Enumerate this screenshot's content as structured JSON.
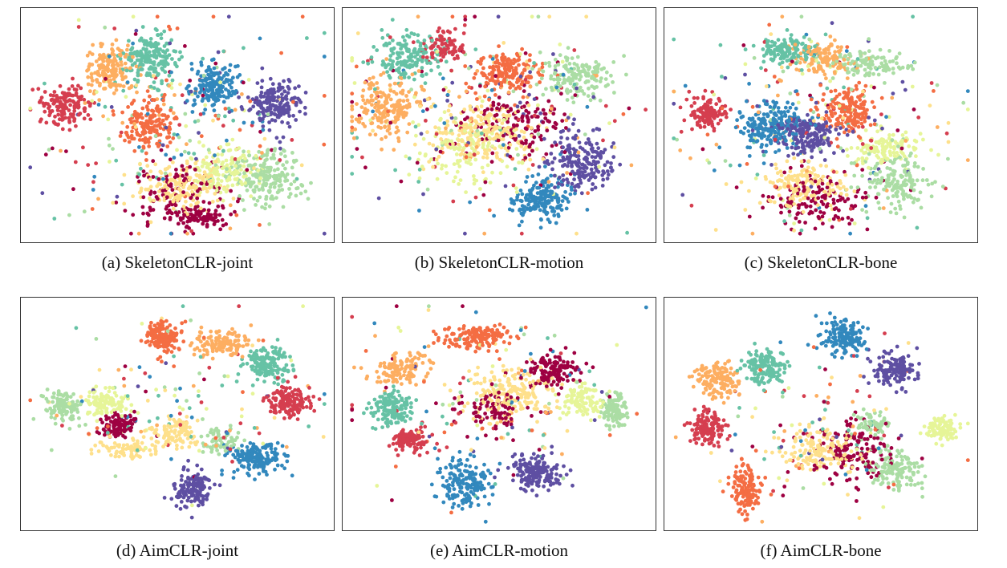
{
  "figure": {
    "panels": [
      {
        "label": "(a)",
        "title": "SkeletonCLR-joint"
      },
      {
        "label": "(b)",
        "title": "SkeletonCLR-motion"
      },
      {
        "label": "(c)",
        "title": "SkeletonCLR-bone"
      },
      {
        "label": "(d)",
        "title": "AimCLR-joint"
      },
      {
        "label": "(e)",
        "title": "AimCLR-motion"
      },
      {
        "label": "(f)",
        "title": "AimCLR-bone"
      }
    ]
  },
  "chart_data": [
    {
      "type": "scatter",
      "title": "SkeletonCLR-joint",
      "xlim": [
        0,
        100
      ],
      "ylim": [
        0,
        100
      ],
      "grid": false,
      "legend": "none",
      "palette": [
        "#9e0142",
        "#d53e4f",
        "#f46d43",
        "#fdae61",
        "#fee08b",
        "#e6f598",
        "#abdda4",
        "#66c2a5",
        "#3288bd",
        "#5e4fa2"
      ],
      "clusters": [
        {
          "class": 7,
          "cx": 41,
          "cy": 80,
          "sx": 6,
          "sy": 7,
          "n": 200
        },
        {
          "class": 3,
          "cx": 28,
          "cy": 75,
          "sx": 6,
          "sy": 7,
          "n": 170
        },
        {
          "class": 8,
          "cx": 62,
          "cy": 68,
          "sx": 5,
          "sy": 7,
          "n": 170
        },
        {
          "class": 9,
          "cx": 83,
          "cy": 60,
          "sx": 6,
          "sy": 7,
          "n": 190
        },
        {
          "class": 1,
          "cx": 13,
          "cy": 59,
          "sx": 5,
          "sy": 6,
          "n": 150
        },
        {
          "class": 2,
          "cx": 41,
          "cy": 50,
          "sx": 6,
          "sy": 7,
          "n": 170
        },
        {
          "class": 6,
          "cx": 79,
          "cy": 27,
          "sx": 8,
          "sy": 9,
          "n": 200
        },
        {
          "class": 5,
          "cx": 66,
          "cy": 30,
          "sx": 8,
          "sy": 7,
          "n": 130
        },
        {
          "class": 4,
          "cx": 52,
          "cy": 22,
          "sx": 10,
          "sy": 8,
          "n": 170
        },
        {
          "class": 0,
          "cx": 50,
          "cy": 17,
          "sx": 11,
          "sy": 10,
          "n": 130
        },
        {
          "class": 0,
          "cx": 58,
          "cy": 9,
          "sx": 6,
          "sy": 3,
          "n": 70
        }
      ],
      "noise": {
        "cx": 50,
        "cy": 50,
        "sx": 22,
        "sy": 22,
        "n": 240
      }
    },
    {
      "type": "scatter",
      "title": "SkeletonCLR-motion",
      "xlim": [
        0,
        100
      ],
      "ylim": [
        0,
        100
      ],
      "grid": false,
      "legend": "none",
      "palette": [
        "#9e0142",
        "#d53e4f",
        "#f46d43",
        "#fdae61",
        "#fee08b",
        "#e6f598",
        "#abdda4",
        "#66c2a5",
        "#3288bd",
        "#5e4fa2"
      ],
      "clusters": [
        {
          "class": 7,
          "cx": 20,
          "cy": 81,
          "sx": 7,
          "sy": 7,
          "n": 170
        },
        {
          "class": 1,
          "cx": 31,
          "cy": 86,
          "sx": 5,
          "sy": 5,
          "n": 90
        },
        {
          "class": 2,
          "cx": 53,
          "cy": 74,
          "sx": 7,
          "sy": 6,
          "n": 170
        },
        {
          "class": 6,
          "cx": 76,
          "cy": 72,
          "sx": 8,
          "sy": 7,
          "n": 160
        },
        {
          "class": 3,
          "cx": 13,
          "cy": 58,
          "sx": 8,
          "sy": 9,
          "n": 200
        },
        {
          "class": 4,
          "cx": 44,
          "cy": 46,
          "sx": 11,
          "sy": 9,
          "n": 210
        },
        {
          "class": 0,
          "cx": 55,
          "cy": 50,
          "sx": 12,
          "sy": 11,
          "n": 140
        },
        {
          "class": 9,
          "cx": 78,
          "cy": 33,
          "sx": 7,
          "sy": 9,
          "n": 190
        },
        {
          "class": 8,
          "cx": 64,
          "cy": 16,
          "sx": 7,
          "sy": 6,
          "n": 190
        },
        {
          "class": 5,
          "cx": 38,
          "cy": 38,
          "sx": 12,
          "sy": 10,
          "n": 120
        }
      ],
      "noise": {
        "cx": 45,
        "cy": 55,
        "sx": 25,
        "sy": 22,
        "n": 260
      }
    },
    {
      "type": "scatter",
      "title": "SkeletonCLR-bone",
      "xlim": [
        0,
        100
      ],
      "ylim": [
        0,
        100
      ],
      "grid": false,
      "legend": "none",
      "palette": [
        "#9e0142",
        "#d53e4f",
        "#f46d43",
        "#fdae61",
        "#fee08b",
        "#e6f598",
        "#abdda4",
        "#66c2a5",
        "#3288bd",
        "#5e4fa2"
      ],
      "clusters": [
        {
          "class": 7,
          "cx": 39,
          "cy": 84,
          "sx": 7,
          "sy": 4,
          "n": 130
        },
        {
          "class": 3,
          "cx": 51,
          "cy": 80,
          "sx": 7,
          "sy": 5,
          "n": 130
        },
        {
          "class": 6,
          "cx": 67,
          "cy": 77,
          "sx": 9,
          "sy": 5,
          "n": 110
        },
        {
          "class": 1,
          "cx": 12,
          "cy": 55,
          "sx": 4,
          "sy": 5,
          "n": 130
        },
        {
          "class": 8,
          "cx": 34,
          "cy": 50,
          "sx": 7,
          "sy": 7,
          "n": 210
        },
        {
          "class": 9,
          "cx": 45,
          "cy": 45,
          "sx": 7,
          "sy": 6,
          "n": 190
        },
        {
          "class": 2,
          "cx": 59,
          "cy": 57,
          "sx": 6,
          "sy": 7,
          "n": 170
        },
        {
          "class": 6,
          "cx": 74,
          "cy": 25,
          "sx": 8,
          "sy": 8,
          "n": 160
        },
        {
          "class": 5,
          "cx": 72,
          "cy": 40,
          "sx": 8,
          "sy": 6,
          "n": 120
        },
        {
          "class": 4,
          "cx": 44,
          "cy": 22,
          "sx": 10,
          "sy": 7,
          "n": 150
        },
        {
          "class": 0,
          "cx": 48,
          "cy": 15,
          "sx": 12,
          "sy": 8,
          "n": 130
        }
      ],
      "noise": {
        "cx": 50,
        "cy": 50,
        "sx": 24,
        "sy": 22,
        "n": 240
      }
    },
    {
      "type": "scatter",
      "title": "AimCLR-joint",
      "xlim": [
        0,
        100
      ],
      "ylim": [
        0,
        100
      ],
      "grid": false,
      "legend": "none",
      "palette": [
        "#9e0142",
        "#d53e4f",
        "#f46d43",
        "#fdae61",
        "#fee08b",
        "#e6f598",
        "#abdda4",
        "#66c2a5",
        "#3288bd",
        "#5e4fa2"
      ],
      "clusters": [
        {
          "class": 2,
          "cx": 45,
          "cy": 85,
          "sx": 3.5,
          "sy": 5,
          "n": 150
        },
        {
          "class": 3,
          "cx": 65,
          "cy": 82,
          "sx": 6,
          "sy": 4,
          "n": 130
        },
        {
          "class": 7,
          "cx": 80,
          "cy": 73,
          "sx": 5,
          "sy": 5,
          "n": 150
        },
        {
          "class": 1,
          "cx": 87,
          "cy": 56,
          "sx": 5,
          "sy": 5,
          "n": 150
        },
        {
          "class": 6,
          "cx": 12,
          "cy": 54,
          "sx": 4,
          "sy": 5,
          "n": 110
        },
        {
          "class": 5,
          "cx": 26,
          "cy": 55,
          "sx": 5,
          "sy": 4,
          "n": 110
        },
        {
          "class": 0,
          "cx": 31,
          "cy": 45,
          "sx": 4,
          "sy": 4,
          "n": 110
        },
        {
          "class": 4,
          "cx": 49,
          "cy": 42,
          "sx": 5,
          "sy": 5,
          "n": 100
        },
        {
          "class": 4,
          "cx": 33,
          "cy": 34,
          "sx": 6,
          "sy": 3,
          "n": 70
        },
        {
          "class": 8,
          "cx": 76,
          "cy": 30,
          "sx": 6,
          "sy": 5,
          "n": 150
        },
        {
          "class": 9,
          "cx": 55,
          "cy": 15,
          "sx": 4,
          "sy": 6,
          "n": 130
        },
        {
          "class": 6,
          "cx": 65,
          "cy": 38,
          "sx": 4,
          "sy": 4,
          "n": 60
        }
      ],
      "noise": {
        "cx": 50,
        "cy": 52,
        "sx": 22,
        "sy": 20,
        "n": 130
      }
    },
    {
      "type": "scatter",
      "title": "AimCLR-motion",
      "xlim": [
        0,
        100
      ],
      "ylim": [
        0,
        100
      ],
      "grid": false,
      "legend": "none",
      "palette": [
        "#9e0142",
        "#d53e4f",
        "#f46d43",
        "#fdae61",
        "#fee08b",
        "#e6f598",
        "#abdda4",
        "#66c2a5",
        "#3288bd",
        "#5e4fa2"
      ],
      "clusters": [
        {
          "class": 2,
          "cx": 43,
          "cy": 85,
          "sx": 8,
          "sy": 4,
          "n": 150
        },
        {
          "class": 3,
          "cx": 17,
          "cy": 70,
          "sx": 6,
          "sy": 5,
          "n": 120
        },
        {
          "class": 0,
          "cx": 68,
          "cy": 70,
          "sx": 6,
          "sy": 5,
          "n": 130
        },
        {
          "class": 4,
          "cx": 54,
          "cy": 60,
          "sx": 10,
          "sy": 8,
          "n": 190
        },
        {
          "class": 5,
          "cx": 78,
          "cy": 56,
          "sx": 5,
          "sy": 5,
          "n": 100
        },
        {
          "class": 6,
          "cx": 88,
          "cy": 52,
          "sx": 3,
          "sy": 5,
          "n": 100
        },
        {
          "class": 7,
          "cx": 14,
          "cy": 52,
          "sx": 5,
          "sy": 5,
          "n": 140
        },
        {
          "class": 1,
          "cx": 20,
          "cy": 38,
          "sx": 4,
          "sy": 4,
          "n": 110
        },
        {
          "class": 8,
          "cx": 39,
          "cy": 18,
          "sx": 6,
          "sy": 7,
          "n": 170
        },
        {
          "class": 9,
          "cx": 62,
          "cy": 24,
          "sx": 6,
          "sy": 5,
          "n": 160
        },
        {
          "class": 0,
          "cx": 48,
          "cy": 52,
          "sx": 7,
          "sy": 6,
          "n": 90
        }
      ],
      "noise": {
        "cx": 45,
        "cy": 55,
        "sx": 22,
        "sy": 20,
        "n": 130
      }
    },
    {
      "type": "scatter",
      "title": "AimCLR-bone",
      "xlim": [
        0,
        100
      ],
      "ylim": [
        0,
        100
      ],
      "grid": false,
      "legend": "none",
      "palette": [
        "#9e0142",
        "#d53e4f",
        "#f46d43",
        "#fdae61",
        "#fee08b",
        "#e6f598",
        "#abdda4",
        "#66c2a5",
        "#3288bd",
        "#5e4fa2"
      ],
      "clusters": [
        {
          "class": 8,
          "cx": 58,
          "cy": 85,
          "sx": 5,
          "sy": 5,
          "n": 160
        },
        {
          "class": 9,
          "cx": 75,
          "cy": 70,
          "sx": 5,
          "sy": 5,
          "n": 140
        },
        {
          "class": 7,
          "cx": 31,
          "cy": 72,
          "sx": 5,
          "sy": 6,
          "n": 150
        },
        {
          "class": 3,
          "cx": 16,
          "cy": 65,
          "sx": 5,
          "sy": 6,
          "n": 140
        },
        {
          "class": 1,
          "cx": 12,
          "cy": 43,
          "sx": 4,
          "sy": 5,
          "n": 130
        },
        {
          "class": 2,
          "cx": 25,
          "cy": 16,
          "sx": 3,
          "sy": 8,
          "n": 130
        },
        {
          "class": 4,
          "cx": 49,
          "cy": 33,
          "sx": 8,
          "sy": 7,
          "n": 150
        },
        {
          "class": 0,
          "cx": 60,
          "cy": 33,
          "sx": 8,
          "sy": 9,
          "n": 150
        },
        {
          "class": 6,
          "cx": 75,
          "cy": 25,
          "sx": 6,
          "sy": 7,
          "n": 130
        },
        {
          "class": 5,
          "cx": 90,
          "cy": 43,
          "sx": 4,
          "sy": 4,
          "n": 100
        },
        {
          "class": 6,
          "cx": 67,
          "cy": 45,
          "sx": 4,
          "sy": 4,
          "n": 60
        }
      ],
      "noise": {
        "cx": 50,
        "cy": 45,
        "sx": 20,
        "sy": 18,
        "n": 110
      }
    }
  ]
}
